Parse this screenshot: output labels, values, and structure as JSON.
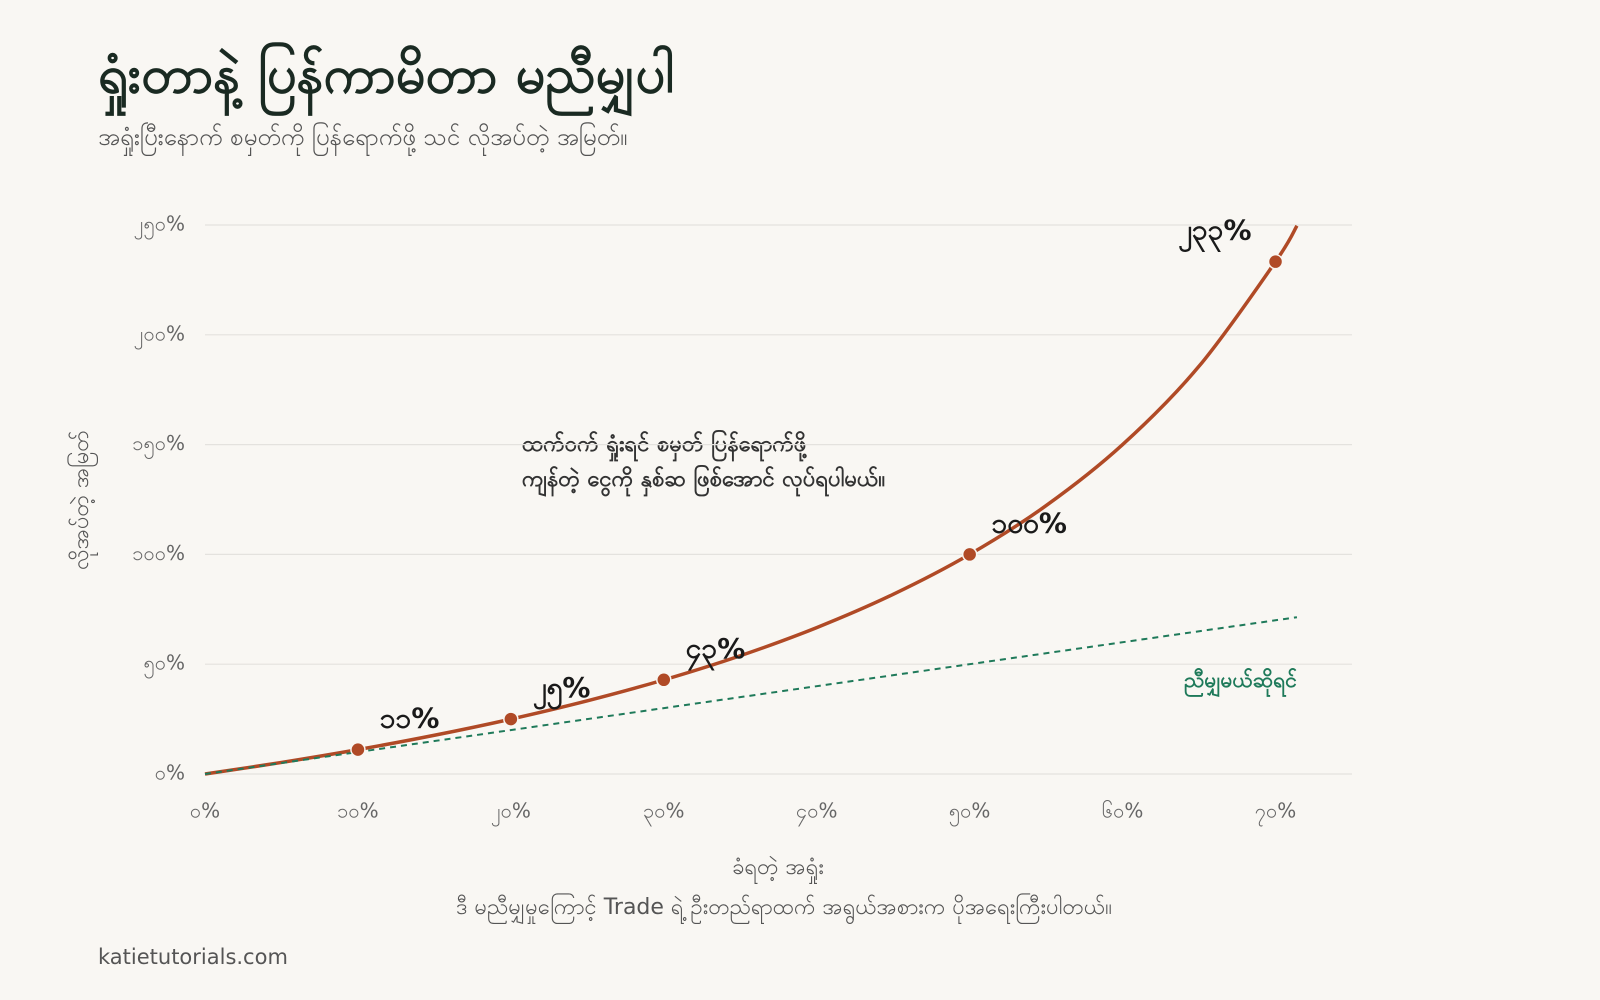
{
  "chart_data": {
    "type": "line",
    "title": "ရှုံးတာနဲ့ ပြန်ကာမိတာ မညီမျှပါ",
    "subtitle": "အရှုံးပြီးနောက် စမှတ်ကို ပြန်ရောက်ဖို့ သင် လိုအပ်တဲ့ အမြတ်။",
    "x_label": "ခံရတဲ့ အရှုံး",
    "y_label": "လိုအပ်တဲ့ အမြတ်",
    "annotation": [
      "ထက်ဝက် ရှုံးရင် စမှတ် ပြန်ရောက်ဖို့",
      "ကျန်တဲ့ ငွေကို နှစ်ဆ ဖြစ်အောင် လုပ်ရပါမယ်။"
    ],
    "note": "ဒီ မညီမျှမှုကြောင့် Trade ရဲ့ ဦးတည်ရာထက် အရွယ်အစားက ပိုအရေးကြီးပါတယ်။",
    "source": "katietutorials.com",
    "xlim": [
      0,
      75
    ],
    "ylim": [
      0,
      250
    ],
    "xticks": [
      {
        "value": 0,
        "label": "၀%"
      },
      {
        "value": 10,
        "label": "၁၀%"
      },
      {
        "value": 20,
        "label": "၂၀%"
      },
      {
        "value": 30,
        "label": "၃၀%"
      },
      {
        "value": 40,
        "label": "၄၀%"
      },
      {
        "value": 50,
        "label": "၅၀%"
      },
      {
        "value": 60,
        "label": "၆၀%"
      },
      {
        "value": 70,
        "label": "၇၀%"
      }
    ],
    "yticks": [
      {
        "value": 0,
        "label": "၀%"
      },
      {
        "value": 50,
        "label": "၅၀%"
      },
      {
        "value": 100,
        "label": "၁၀၀%"
      },
      {
        "value": 150,
        "label": "၁၅၀%"
      },
      {
        "value": 200,
        "label": "၂၀၀%"
      },
      {
        "value": 250,
        "label": "၂၅၀%"
      }
    ],
    "grid": true,
    "series": [
      {
        "color": "#b04a26",
        "x": [
          0,
          5,
          10,
          15,
          20,
          25,
          30,
          35,
          40,
          45,
          50,
          55,
          60,
          65,
          70,
          71.4
        ],
        "values": [
          0,
          5.26,
          11.11,
          17.65,
          25,
          33.33,
          42.86,
          53.85,
          66.67,
          81.82,
          100,
          122.22,
          150,
          185.71,
          233.33,
          249.65
        ]
      },
      {
        "name": "ညီမျှမယ်ဆိုရင်",
        "color": "#1f7a5a",
        "dashed": true,
        "x": [
          0,
          71.4
        ],
        "values": [
          0,
          71.4
        ]
      }
    ],
    "points": {
      "color": "#b04a26",
      "x": [
        10,
        20,
        30,
        50,
        70
      ],
      "values": [
        11.1,
        25,
        42.9,
        100,
        233.3
      ],
      "value_labels": [
        "၁၁%",
        "၂၅%",
        "၄၃%",
        "၁၀၀%",
        "၂၃၃%"
      ]
    }
  }
}
